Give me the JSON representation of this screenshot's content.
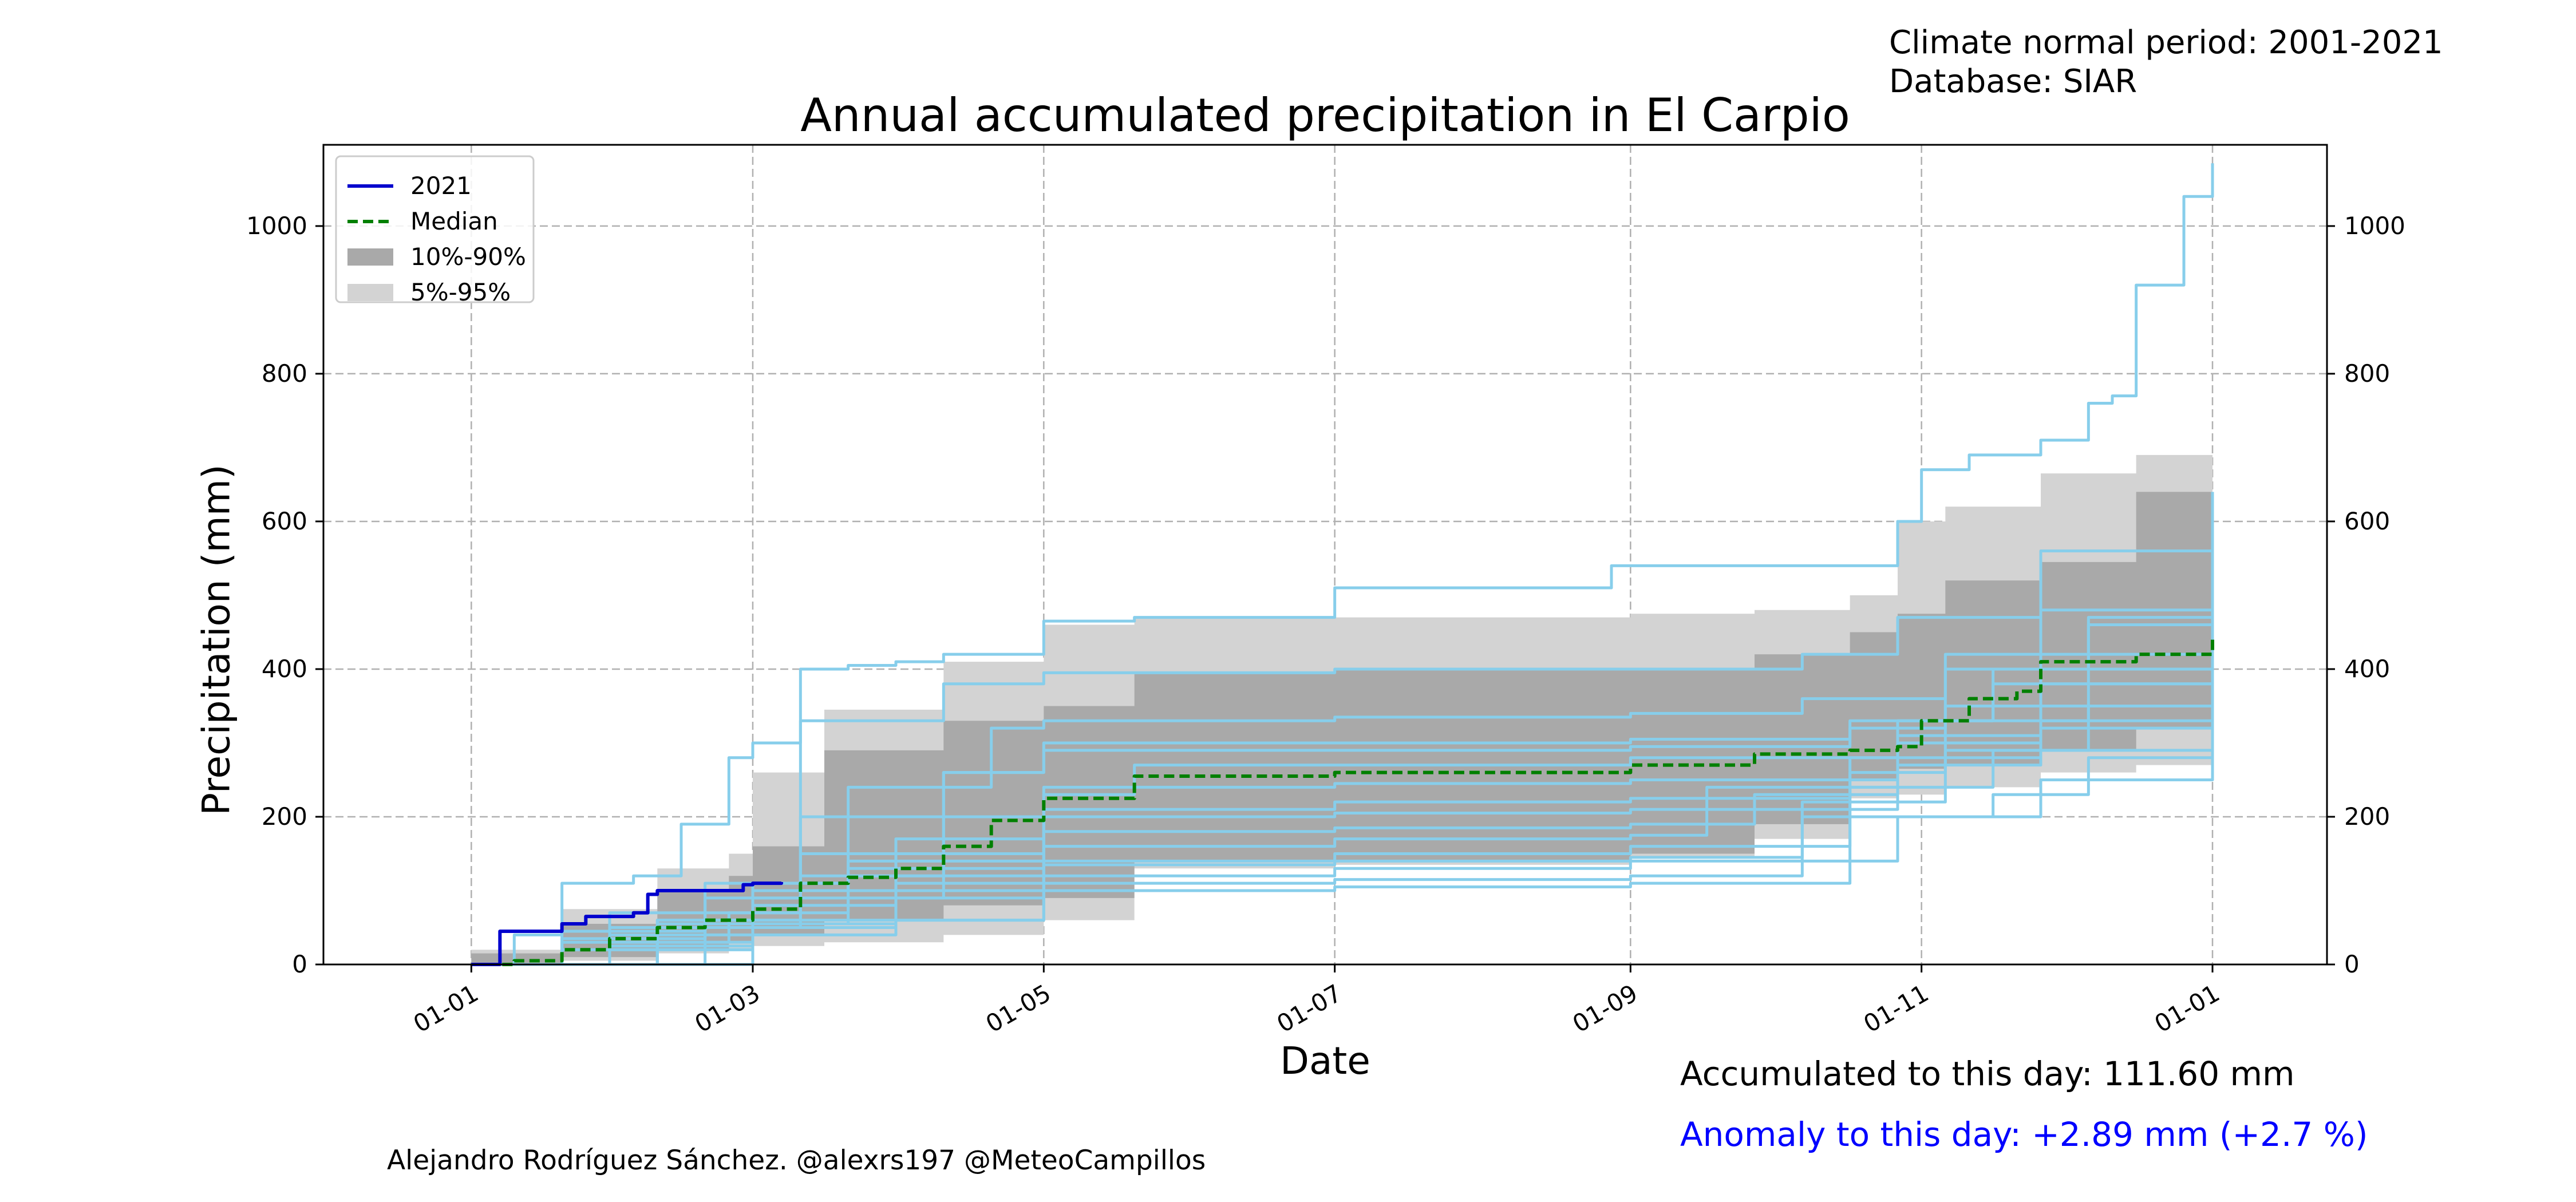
{
  "header": {
    "climate_period": "Climate normal period: 2001-2021",
    "database": "Database: SIAR"
  },
  "footer": {
    "accumulated": "Accumulated to this day: 111.60 mm",
    "anomaly": "Anomaly to this day: +2.89 mm (+2.7 %)",
    "credit": "Alejandro Rodríguez Sánchez. @alexrs197 @MeteoCampillos"
  },
  "colors": {
    "current_year": "#0000cd",
    "median": "#008000",
    "band_10_90": "#a9a9a9",
    "band_5_95": "#d3d3d3",
    "history": "#87ceeb",
    "grid": "#b0b0b0",
    "anomaly_text": "#0000ff"
  },
  "chart_data": {
    "type": "line",
    "title": "Annual accumulated precipitation in El Carpio",
    "xlabel": "Date",
    "ylabel": "Precipitation (mm)",
    "x_unit": "day_of_year",
    "xlim": [
      -30,
      390
    ],
    "ylim": [
      0,
      1110
    ],
    "x_ticks": [
      {
        "day": 1,
        "label": "01-01"
      },
      {
        "day": 60,
        "label": "01-03"
      },
      {
        "day": 121,
        "label": "01-05"
      },
      {
        "day": 182,
        "label": "01-07"
      },
      {
        "day": 244,
        "label": "01-09"
      },
      {
        "day": 305,
        "label": "01-11"
      },
      {
        "day": 366,
        "label": "01-01"
      }
    ],
    "y_ticks": [
      0,
      200,
      400,
      600,
      800,
      1000
    ],
    "grid": true,
    "legend_position": "top-left",
    "legend": [
      {
        "label": "2021",
        "kind": "line-solid",
        "color": "#0000cd"
      },
      {
        "label": "Median",
        "kind": "line-dashed",
        "color": "#008000"
      },
      {
        "label": "10%-90%",
        "kind": "patch",
        "color": "#a9a9a9"
      },
      {
        "label": "5%-95%",
        "kind": "patch",
        "color": "#d3d3d3"
      }
    ],
    "bands": [
      {
        "label": "5%-95%",
        "x": [
          1,
          20,
          40,
          55,
          60,
          75,
          100,
          121,
          140,
          182,
          244,
          270,
          290,
          300,
          310,
          330,
          350,
          366
        ],
        "upper": [
          20,
          75,
          130,
          150,
          260,
          345,
          410,
          460,
          470,
          470,
          475,
          480,
          500,
          600,
          620,
          665,
          690,
          705
        ],
        "lower": [
          0,
          5,
          15,
          20,
          25,
          30,
          40,
          60,
          130,
          135,
          145,
          170,
          225,
          230,
          240,
          260,
          270,
          280
        ]
      },
      {
        "label": "10%-90%",
        "x": [
          1,
          20,
          40,
          55,
          60,
          75,
          100,
          121,
          140,
          182,
          244,
          270,
          290,
          300,
          310,
          330,
          350,
          366
        ],
        "upper": [
          15,
          55,
          100,
          120,
          160,
          290,
          330,
          350,
          395,
          400,
          400,
          420,
          450,
          475,
          520,
          545,
          640,
          645
        ],
        "lower": [
          0,
          10,
          20,
          30,
          40,
          60,
          80,
          90,
          140,
          140,
          150,
          190,
          250,
          265,
          270,
          290,
          320,
          350
        ]
      }
    ],
    "history_series": [
      {
        "x": [
          1,
          10,
          20,
          35,
          45,
          55,
          60,
          70,
          80,
          90,
          100,
          121,
          140,
          182,
          230,
          240,
          244,
          280,
          300,
          305,
          315,
          330,
          340,
          345,
          350,
          360,
          366
        ],
        "y": [
          0,
          40,
          110,
          120,
          190,
          280,
          300,
          400,
          405,
          410,
          420,
          465,
          470,
          510,
          510,
          540,
          540,
          540,
          600,
          670,
          690,
          710,
          760,
          770,
          920,
          1040,
          1085
        ]
      },
      {
        "x": [
          1,
          30,
          60,
          90,
          121,
          182,
          244,
          300,
          320,
          340,
          366
        ],
        "y": [
          0,
          20,
          40,
          60,
          120,
          130,
          140,
          200,
          230,
          280,
          290
        ]
      },
      {
        "x": [
          1,
          30,
          55,
          70,
          100,
          121,
          182,
          244,
          290,
          310,
          330,
          366
        ],
        "y": [
          0,
          30,
          70,
          200,
          260,
          300,
          300,
          305,
          320,
          420,
          480,
          560
        ]
      },
      {
        "x": [
          1,
          20,
          50,
          70,
          100,
          121,
          182,
          244,
          280,
          300,
          330,
          366
        ],
        "y": [
          0,
          45,
          90,
          330,
          380,
          395,
          400,
          400,
          420,
          470,
          560,
          640
        ]
      },
      {
        "x": [
          1,
          40,
          60,
          80,
          121,
          182,
          244,
          260,
          300,
          330,
          366
        ],
        "y": [
          0,
          60,
          110,
          140,
          160,
          170,
          175,
          240,
          300,
          380,
          460
        ]
      },
      {
        "x": [
          1,
          30,
          60,
          90,
          121,
          182,
          244,
          290,
          330,
          366
        ],
        "y": [
          0,
          25,
          55,
          90,
          140,
          150,
          160,
          280,
          330,
          400
        ]
      },
      {
        "x": [
          1,
          50,
          70,
          100,
          121,
          140,
          182,
          244,
          300,
          330,
          366
        ],
        "y": [
          0,
          50,
          120,
          200,
          230,
          240,
          245,
          250,
          310,
          420,
          520
        ]
      },
      {
        "x": [
          1,
          20,
          60,
          90,
          121,
          182,
          244,
          290,
          310,
          366
        ],
        "y": [
          0,
          30,
          80,
          110,
          210,
          220,
          225,
          260,
          350,
          430
        ]
      },
      {
        "x": [
          1,
          30,
          50,
          80,
          110,
          121,
          182,
          244,
          280,
          310,
          366
        ],
        "y": [
          0,
          70,
          110,
          240,
          320,
          330,
          335,
          340,
          360,
          400,
          500
        ]
      },
      {
        "x": [
          1,
          30,
          60,
          100,
          121,
          182,
          244,
          270,
          300,
          330,
          366
        ],
        "y": [
          0,
          40,
          90,
          150,
          180,
          185,
          190,
          230,
          270,
          320,
          370
        ]
      },
      {
        "x": [
          1,
          20,
          60,
          90,
          121,
          182,
          244,
          280,
          330,
          366
        ],
        "y": [
          0,
          20,
          60,
          100,
          110,
          115,
          120,
          200,
          250,
          300
        ]
      },
      {
        "x": [
          1,
          40,
          70,
          100,
          121,
          182,
          244,
          290,
          320,
          340,
          366
        ],
        "y": [
          0,
          60,
          150,
          260,
          290,
          290,
          295,
          330,
          400,
          470,
          600
        ]
      },
      {
        "x": [
          1,
          30,
          60,
          90,
          121,
          140,
          182,
          244,
          300,
          320,
          366
        ],
        "y": [
          0,
          50,
          100,
          170,
          240,
          270,
          270,
          280,
          330,
          380,
          450
        ]
      },
      {
        "x": [
          1,
          20,
          50,
          80,
          121,
          182,
          244,
          280,
          310,
          340,
          366
        ],
        "y": [
          0,
          35,
          70,
          120,
          135,
          140,
          145,
          220,
          290,
          350,
          420
        ]
      },
      {
        "x": [
          1,
          60,
          90,
          121,
          182,
          244,
          290,
          320,
          366
        ],
        "y": [
          0,
          50,
          60,
          100,
          105,
          110,
          240,
          290,
          330
        ]
      },
      {
        "x": [
          1,
          40,
          80,
          121,
          182,
          244,
          300,
          340,
          366
        ],
        "y": [
          0,
          55,
          130,
          200,
          205,
          210,
          330,
          460,
          540
        ]
      }
    ],
    "series": [
      {
        "name": "Median",
        "x": [
          1,
          10,
          20,
          30,
          40,
          50,
          60,
          70,
          80,
          90,
          100,
          110,
          121,
          140,
          182,
          230,
          244,
          270,
          290,
          300,
          305,
          315,
          325,
          330,
          350,
          366
        ],
        "y": [
          0,
          5,
          20,
          35,
          50,
          60,
          75,
          110,
          118,
          130,
          160,
          195,
          225,
          255,
          260,
          260,
          270,
          285,
          290,
          295,
          330,
          360,
          370,
          410,
          420,
          440
        ]
      },
      {
        "name": "2021",
        "x": [
          1,
          4,
          7,
          18,
          20,
          25,
          35,
          38,
          40,
          45,
          58,
          60,
          66
        ],
        "y": [
          0,
          0,
          45,
          45,
          55,
          65,
          70,
          95,
          100,
          100,
          108,
          110,
          111.6
        ]
      }
    ]
  }
}
